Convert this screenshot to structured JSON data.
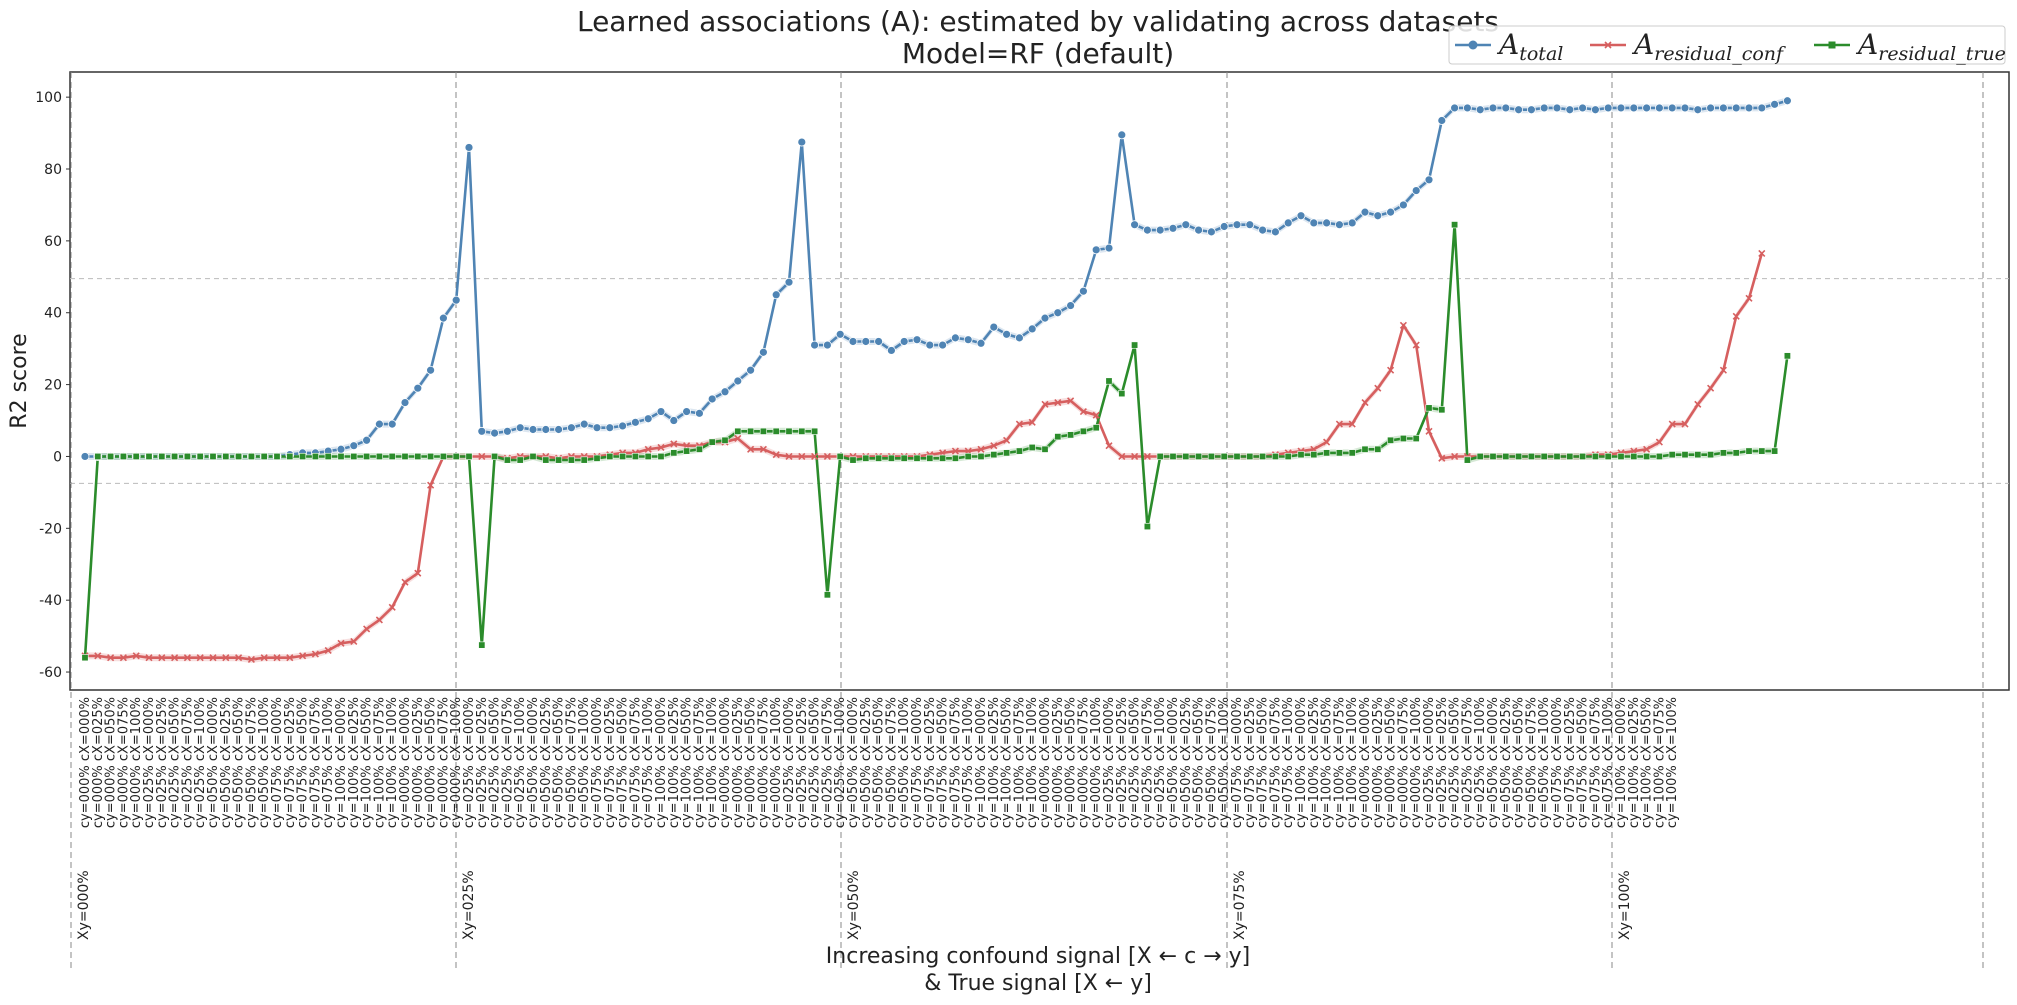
{
  "chart_data": {
    "type": "line",
    "title": "Learned associations (A): estimated by validating across datasets",
    "subtitle": "Model=RF (default)",
    "ylabel": "R2 score",
    "xlabel_line1": "Increasing confound signal [X ← c → y]",
    "xlabel_line2": "&   True signal  [X ← y]",
    "ylim": [
      -65,
      107
    ],
    "yticks": [
      -60,
      -40,
      -20,
      0,
      20,
      40,
      60,
      80,
      100
    ],
    "hlines": [
      49.5,
      -7.5
    ],
    "grid": false,
    "legend_position": "top-right",
    "x_pattern": {
      "cy_levels": [
        "cy=000%",
        "cy=000%",
        "cy=000%",
        "cy=000%",
        "cy=000%",
        "cy=025%",
        "cy=025%",
        "cy=025%",
        "cy=025%",
        "cy=025%",
        "cy=050%",
        "cy=050%",
        "cy=050%",
        "cy=050%",
        "cy=050%",
        "cy=075%",
        "cy=075%",
        "cy=075%",
        "cy=075%",
        "cy=075%",
        "cy=100%",
        "cy=100%",
        "cy=100%",
        "cy=100%",
        "cy=100%"
      ],
      "cx_levels": [
        "cX=000%",
        "cX=025%",
        "cX=050%",
        "cX=075%",
        "cX=100%",
        "cX=000%",
        "cX=025%",
        "cX=050%",
        "cX=075%",
        "cX=100%",
        "cX=000%",
        "cX=025%",
        "cX=050%",
        "cX=075%",
        "cX=100%",
        "cX=000%",
        "cX=025%",
        "cX=050%",
        "cX=075%",
        "cX=100%",
        "cX=000%",
        "cX=025%",
        "cX=050%",
        "cX=075%",
        "cX=100%"
      ]
    },
    "groups": [
      {
        "label": "Xy=000%"
      },
      {
        "label": "Xy=025%"
      },
      {
        "label": "Xy=050%"
      },
      {
        "label": "Xy=075%"
      },
      {
        "label": "Xy=100%"
      }
    ],
    "series": [
      {
        "name": "A_total",
        "legend_main": "A",
        "legend_sub": "total",
        "color": "#4f84b4",
        "marker": "circle",
        "values": [
          0,
          0,
          0,
          0,
          0,
          0,
          0,
          0,
          0,
          0,
          0,
          0,
          0,
          0,
          0,
          0,
          0.5,
          1,
          1,
          1.5,
          2,
          3,
          4.5,
          9,
          9,
          15,
          19,
          24,
          38.5,
          43.5,
          86,
          7,
          6.5,
          7,
          8,
          7.5,
          7.5,
          7.5,
          8,
          9,
          8,
          8,
          8.5,
          9.5,
          10.5,
          12.5,
          10,
          12.5,
          12,
          16,
          18,
          21,
          24,
          29,
          45,
          48.5,
          87.5,
          31,
          31,
          34,
          32,
          32,
          32,
          29.5,
          32,
          32.5,
          31,
          31,
          33,
          32.5,
          31.5,
          36,
          34,
          33,
          35.5,
          38.5,
          40,
          42,
          46,
          57.5,
          58,
          89.5,
          64.5,
          63,
          63,
          63.5,
          64.5,
          63,
          62.5,
          64,
          64.5,
          64.5,
          63,
          62.5,
          65,
          67,
          65,
          65,
          64.5,
          65,
          68,
          67,
          68,
          70,
          74,
          77,
          93.5,
          97,
          97,
          96.5,
          97,
          97,
          96.5,
          96.5,
          97,
          97,
          96.5,
          97,
          96.5,
          97,
          97,
          97,
          97,
          97,
          97,
          97,
          96.5,
          97,
          97,
          97,
          97,
          97,
          98,
          99
        ]
      },
      {
        "name": "A_residual_conf",
        "legend_main": "A",
        "legend_sub": "residual_conf",
        "color": "#d65f5f",
        "marker": "x",
        "values": [
          -55.5,
          -55.5,
          -56,
          -56,
          -55.5,
          -56,
          -56,
          -56,
          -56,
          -56,
          -56,
          -56,
          -56,
          -56.5,
          -56,
          -56,
          -56,
          -55.5,
          -55,
          -54,
          -52,
          -51.5,
          -48,
          -45.5,
          -42,
          -35,
          -32.5,
          -8,
          0,
          0,
          0,
          0,
          0,
          -0.5,
          0,
          0,
          0,
          -0.5,
          0,
          0,
          0,
          0.5,
          1,
          1,
          2,
          2.5,
          3.5,
          3,
          3,
          4,
          4,
          5,
          2,
          2,
          0.5,
          0,
          0,
          0,
          0,
          0,
          0,
          0,
          0,
          0,
          0,
          0,
          0.5,
          1,
          1.5,
          1.5,
          2,
          3,
          4.5,
          9,
          9.5,
          14.5,
          15,
          15.5,
          12.5,
          11.5,
          3,
          0,
          0,
          0,
          0,
          0,
          0,
          0,
          0,
          0,
          0,
          0,
          0,
          0.5,
          1,
          1.5,
          2,
          4,
          9,
          9,
          15,
          19,
          24,
          36.5,
          31,
          7,
          -0.5,
          0,
          0,
          0,
          0,
          0,
          0,
          0,
          0,
          0,
          0,
          0,
          0.5,
          0.5,
          1,
          1.5,
          2,
          4,
          9,
          9,
          14.5,
          19,
          24,
          39,
          44,
          56.5
        ]
      },
      {
        "name": "A_residual_true",
        "legend_main": "A",
        "legend_sub": "residual_true",
        "color": "#2b8c2b",
        "marker": "square",
        "values": [
          -56,
          0,
          0,
          0,
          0,
          0,
          0,
          0,
          0,
          0,
          0,
          0,
          0,
          0,
          0,
          0,
          0,
          0,
          0,
          0,
          0,
          0,
          0,
          0,
          0,
          0,
          0,
          0,
          0,
          0,
          0,
          -52.5,
          0,
          -1,
          -1,
          0,
          -1,
          -1,
          -1,
          -1,
          -0.5,
          0,
          0,
          0,
          0,
          0,
          1,
          1.5,
          2,
          4,
          4.5,
          7,
          7,
          7,
          7,
          7,
          7,
          7,
          -38.5,
          0,
          -1,
          -0.5,
          -0.5,
          -0.5,
          -0.5,
          -0.5,
          -0.5,
          -0.5,
          -0.5,
          0,
          0,
          0.5,
          1,
          1.5,
          2.5,
          2,
          5.5,
          6,
          7,
          8,
          21,
          17.5,
          31,
          -19.5,
          0,
          0,
          0,
          0,
          0,
          0,
          0,
          0,
          0,
          0,
          0,
          0.5,
          0.5,
          1,
          1,
          1,
          2,
          2,
          4.5,
          5,
          5,
          13.5,
          13,
          64.5,
          -1,
          0,
          0,
          0,
          0,
          0,
          0,
          0,
          0,
          0,
          0,
          0,
          0,
          0,
          0,
          0,
          0.5,
          0.5,
          0.5,
          0.5,
          1,
          1,
          1.5,
          1.5,
          1.5,
          28
        ]
      }
    ]
  }
}
